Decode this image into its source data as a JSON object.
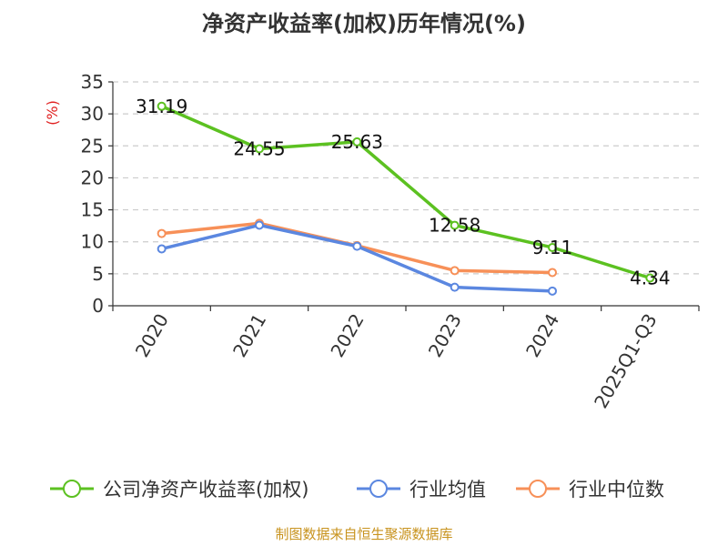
{
  "chart_data": {
    "type": "line",
    "title": "净资产收益率(加权)历年情况(%)",
    "ylabel": "(%)",
    "xlabel": "",
    "ylim": [
      0,
      35
    ],
    "yticks": [
      0,
      5,
      10,
      15,
      20,
      25,
      30,
      35
    ],
    "grid": true,
    "legend": "bottom",
    "categories": [
      "2020",
      "2021",
      "2022",
      "2023",
      "2024",
      "2025Q1-Q3"
    ],
    "series": [
      {
        "name": "公司净资产收益率(加权)",
        "color": "#5cc121",
        "values": [
          31.19,
          24.55,
          25.63,
          12.58,
          9.11,
          4.34
        ],
        "labels": [
          "31.19",
          "24.55",
          "25.63",
          "12.58",
          "9.11",
          "4.34"
        ]
      },
      {
        "name": "行业均值",
        "color": "#5b87e0",
        "values": [
          8.9,
          12.6,
          9.3,
          2.9,
          2.3,
          null
        ]
      },
      {
        "name": "行业中位数",
        "color": "#f79058",
        "values": [
          11.3,
          12.9,
          9.4,
          5.5,
          5.2,
          null
        ]
      }
    ]
  },
  "footer": {
    "source": "制图数据来自恒生聚源数据库"
  }
}
